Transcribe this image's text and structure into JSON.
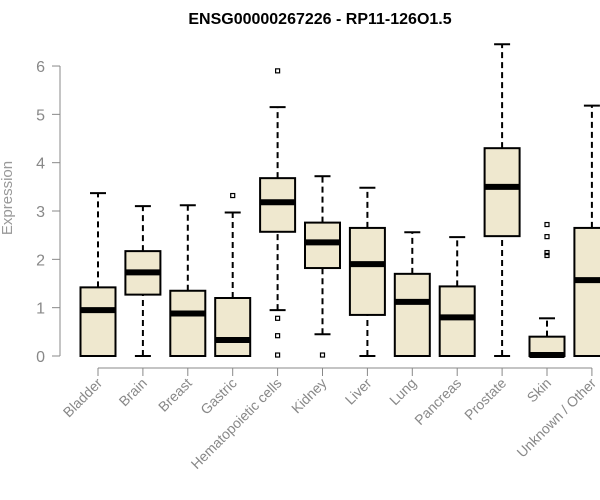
{
  "chart_data": {
    "type": "boxplot",
    "title": "ENSG00000267226 - RP11-126O1.5",
    "ylabel": "Expression",
    "xlabel": "",
    "ylim": [
      0,
      6.5
    ],
    "yticks": [
      "0",
      "1",
      "2",
      "3",
      "4",
      "5",
      "6"
    ],
    "box_color": "#efe8cf",
    "categories": [
      "Bladder",
      "Brain",
      "Breast",
      "Gastric",
      "Hematopoietic cells",
      "Kidney",
      "Liver",
      "Lung",
      "Pancreas",
      "Prostate",
      "Skin",
      "Unknown / Other"
    ],
    "series": [
      {
        "values": [
          {
            "min": 0,
            "q1": 0,
            "median": 0.95,
            "q3": 1.42,
            "max": 3.37,
            "outliers": []
          },
          {
            "min": 0,
            "q1": 1.27,
            "median": 1.73,
            "q3": 2.17,
            "max": 3.1,
            "outliers": []
          },
          {
            "min": 0,
            "q1": 0,
            "median": 0.88,
            "q3": 1.35,
            "max": 3.12,
            "outliers": []
          },
          {
            "min": 0,
            "q1": 0,
            "median": 0.33,
            "q3": 1.2,
            "max": 2.97,
            "outliers": [
              3.32
            ]
          },
          {
            "min": 0.95,
            "q1": 2.57,
            "median": 3.18,
            "q3": 3.68,
            "max": 5.15,
            "outliers": [
              5.9,
              0.78,
              0.42,
              0.02
            ]
          },
          {
            "min": 0.45,
            "q1": 1.82,
            "median": 2.35,
            "q3": 2.76,
            "max": 3.72,
            "outliers": [
              0.02
            ]
          },
          {
            "min": 0,
            "q1": 0.85,
            "median": 1.9,
            "q3": 2.65,
            "max": 3.48,
            "outliers": []
          },
          {
            "min": 0,
            "q1": 0,
            "median": 1.12,
            "q3": 1.7,
            "max": 2.56,
            "outliers": []
          },
          {
            "min": 0,
            "q1": 0,
            "median": 0.8,
            "q3": 1.44,
            "max": 2.46,
            "outliers": []
          },
          {
            "min": 0,
            "q1": 2.48,
            "median": 3.5,
            "q3": 4.3,
            "max": 6.45,
            "outliers": []
          },
          {
            "min": 0,
            "q1": 0,
            "median": 0.02,
            "q3": 0.4,
            "max": 0.78,
            "outliers": [
              2.72,
              2.47,
              2.14,
              2.08
            ]
          },
          {
            "min": 0,
            "q1": 0,
            "median": 1.57,
            "q3": 2.65,
            "max": 5.18,
            "outliers": []
          }
        ]
      }
    ]
  }
}
